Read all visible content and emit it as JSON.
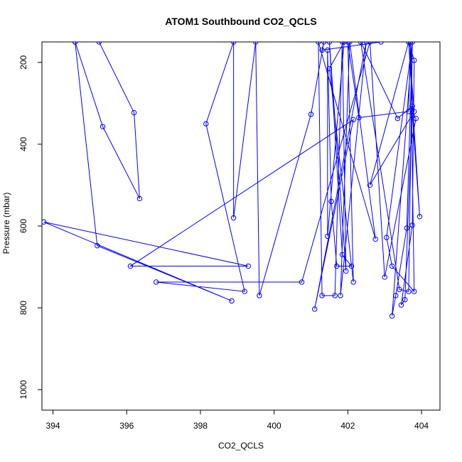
{
  "chart_data": {
    "type": "line",
    "title": "ATOM1 Southbound CO2_QCLS",
    "xlabel": "CO2_QCLS",
    "ylabel": "Pressure (mbar)",
    "xlim": [
      393.7,
      404.5
    ],
    "ylim": [
      1050,
      150
    ],
    "y_reversed": true,
    "xticks": [
      394,
      396,
      398,
      400,
      402,
      404
    ],
    "yticks": [
      200,
      400,
      600,
      800,
      1000
    ],
    "grid": false,
    "series": [
      {
        "color": "#0000ff",
        "marker": "open-circle",
        "points": [
          [
            394.6,
            150
          ],
          [
            395.2,
            648
          ],
          [
            398.85,
            783
          ],
          [
            393.75,
            590
          ],
          [
            399.3,
            698
          ],
          [
            396.1,
            698
          ],
          [
            402.15,
            340
          ],
          [
            401.1,
            803
          ],
          [
            402.5,
            150
          ],
          [
            401.8,
            770
          ],
          [
            402.05,
            150
          ],
          [
            402.75,
            632
          ],
          [
            401.2,
            150
          ],
          [
            401.3,
            770
          ],
          [
            401.65,
            770
          ],
          [
            401.85,
            150
          ],
          [
            401.95,
            710
          ],
          [
            401.5,
            150
          ],
          [
            401.85,
            670
          ],
          [
            402.1,
            698
          ],
          [
            401.7,
            698
          ],
          [
            401.55,
            540
          ],
          [
            401.45,
            170
          ],
          [
            401.45,
            625
          ],
          [
            401.9,
            150
          ],
          [
            401.5,
            215
          ],
          [
            402.15,
            737
          ],
          [
            402.0,
            150
          ],
          [
            402.3,
            335
          ],
          [
            403.65,
            320
          ],
          [
            403.7,
            150
          ],
          [
            403.8,
            760
          ],
          [
            403.2,
            698
          ],
          [
            403.05,
            628
          ],
          [
            403.75,
            150
          ],
          [
            403.6,
            605
          ],
          [
            403.3,
            770
          ],
          [
            403.2,
            820
          ],
          [
            403.75,
            150
          ],
          [
            403.65,
            760
          ],
          [
            403.4,
            755
          ],
          [
            402.35,
            150
          ],
          [
            403.35,
            337
          ],
          [
            403.75,
            307
          ],
          [
            403.55,
            780
          ],
          [
            403.45,
            793
          ],
          [
            403.75,
            598
          ],
          [
            403.8,
            195
          ],
          [
            403.65,
            150
          ],
          [
            403.8,
            320
          ],
          [
            402.6,
            500
          ],
          [
            403.65,
            150
          ],
          [
            403.95,
            577
          ],
          [
            403.75,
            330
          ],
          [
            403.85,
            337
          ],
          [
            403.0,
            725
          ],
          [
            402.6,
            150
          ],
          [
            400.75,
            737
          ],
          [
            396.8,
            737
          ],
          [
            399.2,
            760
          ],
          [
            398.15,
            350
          ],
          [
            398.9,
            150
          ],
          [
            398.9,
            580
          ],
          [
            399.5,
            150
          ],
          [
            399.6,
            770
          ],
          [
            401.0,
            327
          ],
          [
            401.35,
            150
          ],
          [
            401.3,
            170
          ],
          [
            402.9,
            150
          ]
        ]
      },
      {
        "color": "#0000ff",
        "marker": "open-circle",
        "points": [
          [
            394.6,
            150
          ],
          [
            395.35,
            357
          ],
          [
            396.35,
            533
          ],
          [
            396.2,
            323
          ],
          [
            395.25,
            150
          ]
        ]
      }
    ]
  }
}
